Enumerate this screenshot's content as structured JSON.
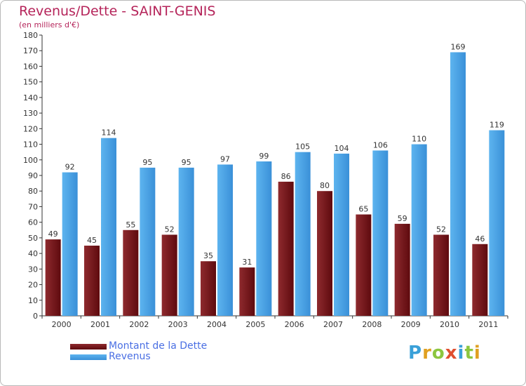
{
  "title": "Revenus/Dette - SAINT-GENIS",
  "subtitle": "(en milliers d'€)",
  "logo": {
    "text": "Proxiti",
    "letters": [
      "P",
      "r",
      "o",
      "x",
      "i",
      "t",
      "i"
    ],
    "colors": [
      "#3aa0d8",
      "#e0a020",
      "#8cc63f",
      "#e04f2f",
      "#3aa0d8",
      "#8cc63f",
      "#e0a020"
    ]
  },
  "legend": [
    {
      "label": "Montant de la Dette",
      "color": "#6b0a0a"
    },
    {
      "label": "Revenus",
      "color": "#4aa3e8"
    }
  ],
  "chart_data": {
    "type": "bar",
    "categories": [
      "2000",
      "2001",
      "2002",
      "2003",
      "2004",
      "2005",
      "2006",
      "2007",
      "2008",
      "2009",
      "2010",
      "2011"
    ],
    "series": [
      {
        "name": "Montant de la Dette",
        "values": [
          49,
          45,
          55,
          52,
          35,
          31,
          86,
          80,
          65,
          59,
          52,
          46
        ],
        "color": "#7a1a1e"
      },
      {
        "name": "Revenus",
        "values": [
          92,
          114,
          95,
          95,
          97,
          99,
          105,
          104,
          106,
          110,
          169,
          119
        ],
        "color": "#4aa3e8"
      }
    ],
    "ylim": [
      0,
      180
    ],
    "yticks": [
      0,
      10,
      20,
      30,
      40,
      50,
      60,
      70,
      80,
      90,
      100,
      110,
      120,
      130,
      140,
      150,
      160,
      170,
      180
    ],
    "grid": false,
    "legend_position": "bottom-left"
  }
}
